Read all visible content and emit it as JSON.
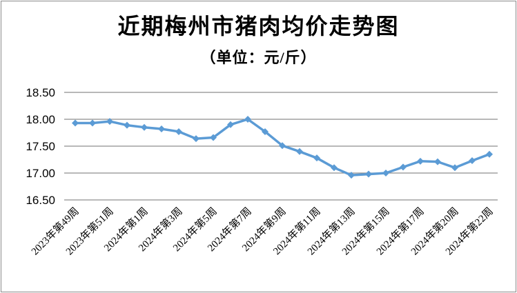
{
  "frame": {
    "background_color": "#ffffff",
    "border_color": "#8a8a8a"
  },
  "chart_data": {
    "type": "line",
    "title": "近期梅州市猪肉均价走势图",
    "subtitle": "（单位：元/斤）",
    "ylabel": "",
    "xlabel": "",
    "ylim": [
      16.5,
      18.5
    ],
    "y_tick_step": 0.5,
    "y_tick_labels": [
      "18.50",
      "18.00",
      "17.50",
      "17.00",
      "16.50"
    ],
    "x_tick_labels": [
      "2023年第49周",
      "2023年第51周",
      "2024年第1周",
      "2024年第3周",
      "2024年第5周",
      "2024年第7周",
      "2024年第9周",
      "2024年第11周",
      "2024年第13周",
      "2024年第15周",
      "2024年第17周",
      "2024年第20周",
      "2024年第22周"
    ],
    "x_tick_every": 2,
    "values": [
      17.93,
      17.93,
      17.96,
      17.89,
      17.85,
      17.82,
      17.77,
      17.64,
      17.66,
      17.9,
      18.0,
      17.77,
      17.51,
      17.4,
      17.28,
      17.1,
      16.96,
      16.98,
      17.0,
      17.11,
      17.22,
      17.21,
      17.1,
      17.23,
      17.35
    ],
    "grid": true,
    "gridline_color": "#8e8e8e",
    "legend_position": "none",
    "line_color": "#5b9bd5",
    "marker": "diamond",
    "text_color": "#000000"
  }
}
